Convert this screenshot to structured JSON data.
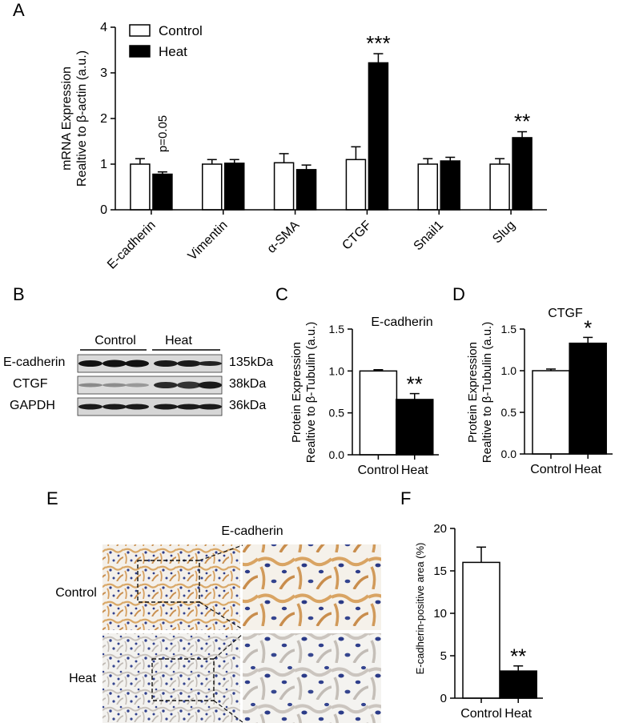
{
  "panel_labels": {
    "a": "A",
    "b": "B",
    "c": "C",
    "d": "D",
    "e": "E",
    "f": "F"
  },
  "chart_data": [
    {
      "panel": "A",
      "type": "bar",
      "ylabel_line1": "mRNA Expression",
      "ylabel_line2": "Realtive to β-actin (a.u.)",
      "categories": [
        "E-cadherin",
        "Vimentin",
        "α-SMA",
        "CTGF",
        "Snail1",
        "Slug"
      ],
      "series": [
        {
          "name": "Control",
          "values": [
            1.0,
            1.0,
            1.03,
            1.1,
            1.0,
            1.0
          ],
          "errors": [
            0.12,
            0.1,
            0.2,
            0.28,
            0.12,
            0.12
          ]
        },
        {
          "name": "Heat",
          "values": [
            0.78,
            1.02,
            0.88,
            3.22,
            1.07,
            1.58
          ],
          "errors": [
            0.05,
            0.08,
            0.1,
            0.2,
            0.08,
            0.13
          ]
        }
      ],
      "yticks": [
        "0",
        "1",
        "2",
        "3",
        "4"
      ],
      "ylim": [
        0,
        4
      ],
      "annotations": [
        {
          "category": "E-cadherin",
          "text": "p=0.05",
          "rotated": true
        },
        {
          "category": "CTGF",
          "text": "***"
        },
        {
          "category": "Slug",
          "text": "**"
        }
      ],
      "legend_position": "top-left"
    },
    {
      "panel": "C",
      "type": "bar",
      "title": "E-cadherin",
      "ylabel_line1": "Protein Expression",
      "ylabel_line2": "Realtive to β-Tubulin (a.u.)",
      "categories": [
        "Control",
        "Heat"
      ],
      "values": [
        1.0,
        0.66
      ],
      "errors": [
        0.015,
        0.07
      ],
      "yticks": [
        "0.0",
        "0.5",
        "1.0",
        "1.5"
      ],
      "ylim": [
        0,
        1.5
      ],
      "annotations": [
        {
          "category": "Heat",
          "text": "**"
        }
      ]
    },
    {
      "panel": "D",
      "type": "bar",
      "title": "CTGF",
      "ylabel_line1": "Protein Expression",
      "ylabel_line2": "Realtive to β-Tubulin (a.u.)",
      "categories": [
        "Control",
        "Heat"
      ],
      "values": [
        1.0,
        1.33
      ],
      "errors": [
        0.02,
        0.07
      ],
      "yticks": [
        "0.0",
        "0.5",
        "1.0",
        "1.5"
      ],
      "ylim": [
        0,
        1.5
      ],
      "annotations": [
        {
          "category": "Heat",
          "text": "*"
        }
      ]
    },
    {
      "panel": "F",
      "type": "bar",
      "ylabel": "E-cadherin-positive area (%)",
      "categories": [
        "Control",
        "Heat"
      ],
      "values": [
        16.0,
        3.2
      ],
      "errors": [
        1.8,
        0.6
      ],
      "yticks": [
        "0",
        "5",
        "10",
        "15",
        "20"
      ],
      "ylim": [
        0,
        20
      ],
      "annotations": [
        {
          "category": "Heat",
          "text": "**"
        }
      ]
    }
  ],
  "western_blot": {
    "group_labels": [
      "Control",
      "Heat"
    ],
    "rows": [
      {
        "protein": "E-cadherin",
        "size": "135kDa"
      },
      {
        "protein": "CTGF",
        "size": "38kDa"
      },
      {
        "protein": "GAPDH",
        "size": "36kDa"
      }
    ]
  },
  "ihc": {
    "title": "E-cadherin",
    "row_labels": [
      "Control",
      "Heat"
    ]
  }
}
